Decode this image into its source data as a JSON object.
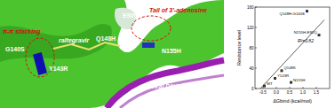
{
  "figure": {
    "labels": [
      "E92Q",
      "Tail of 3'-adenosine",
      "Q148H",
      "N155H",
      "raltegravir",
      "G140S",
      "π-π stacking",
      "Y143R",
      "viral DNA"
    ]
  },
  "chart_data": {
    "type": "scatter",
    "x_label": "ΔGbind (kcal/mol)",
    "y_label": "Resistance level",
    "annotation": "R²=0.82",
    "xlim": [
      -0.8,
      2.0
    ],
    "xticks": [
      -0.5,
      {
        "value": 0,
        "label": "0.0"
      },
      0.5,
      {
        "value": 1,
        "label": "1.0"
      },
      1.5
    ],
    "ylim": [
      0,
      160
    ],
    "yticks": [
      0,
      40,
      80,
      120,
      160
    ],
    "grid": false,
    "series": [
      {
        "type": "scatter",
        "color": "#333333",
        "marker": "square",
        "x": [
          -0.45,
          -0.05,
          0.2,
          0.55,
          1.15,
          1.6
        ],
        "values": [
          5,
          20,
          35,
          12,
          152,
          105
        ],
        "point_labels": [
          "WT",
          "Y143R",
          "Q148K",
          "N155H",
          "Q148H-G140S",
          "N155H-E92Q"
        ]
      },
      {
        "type": "line",
        "color": "#333333",
        "line_style": "solid",
        "x": [
          -0.6,
          1.8
        ],
        "values": [
          0,
          135
        ]
      }
    ]
  }
}
